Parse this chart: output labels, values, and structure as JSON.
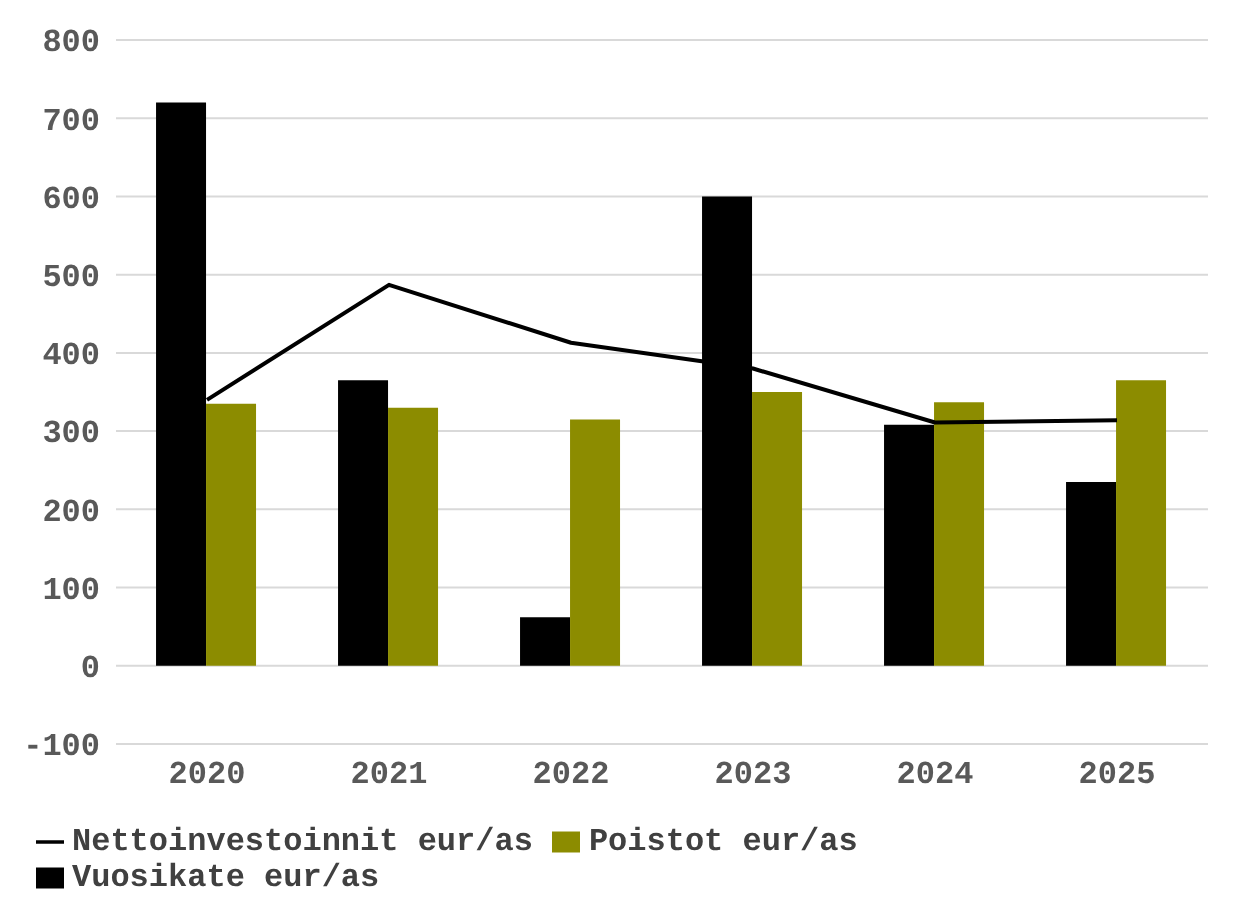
{
  "chart_data": {
    "type": "bar",
    "categories": [
      "2020",
      "2021",
      "2022",
      "2023",
      "2024",
      "2025"
    ],
    "series": [
      {
        "name": "Vuosikate eur/as",
        "color": "#000000",
        "values": [
          720,
          365,
          62,
          600,
          308,
          235
        ]
      },
      {
        "name": "Poistot eur/as",
        "color": "#8c8c00",
        "values": [
          335,
          330,
          315,
          350,
          337,
          365
        ]
      },
      {
        "name": "Nettoinvestoinnit eur/as",
        "type": "line",
        "color": "#000000",
        "values": [
          340,
          487,
          413,
          380,
          311,
          314
        ]
      }
    ],
    "ylim": [
      -100,
      800
    ],
    "yticks": [
      -100,
      0,
      100,
      200,
      300,
      400,
      500,
      600,
      700,
      800
    ],
    "grid": "y",
    "legend": "bottom"
  }
}
